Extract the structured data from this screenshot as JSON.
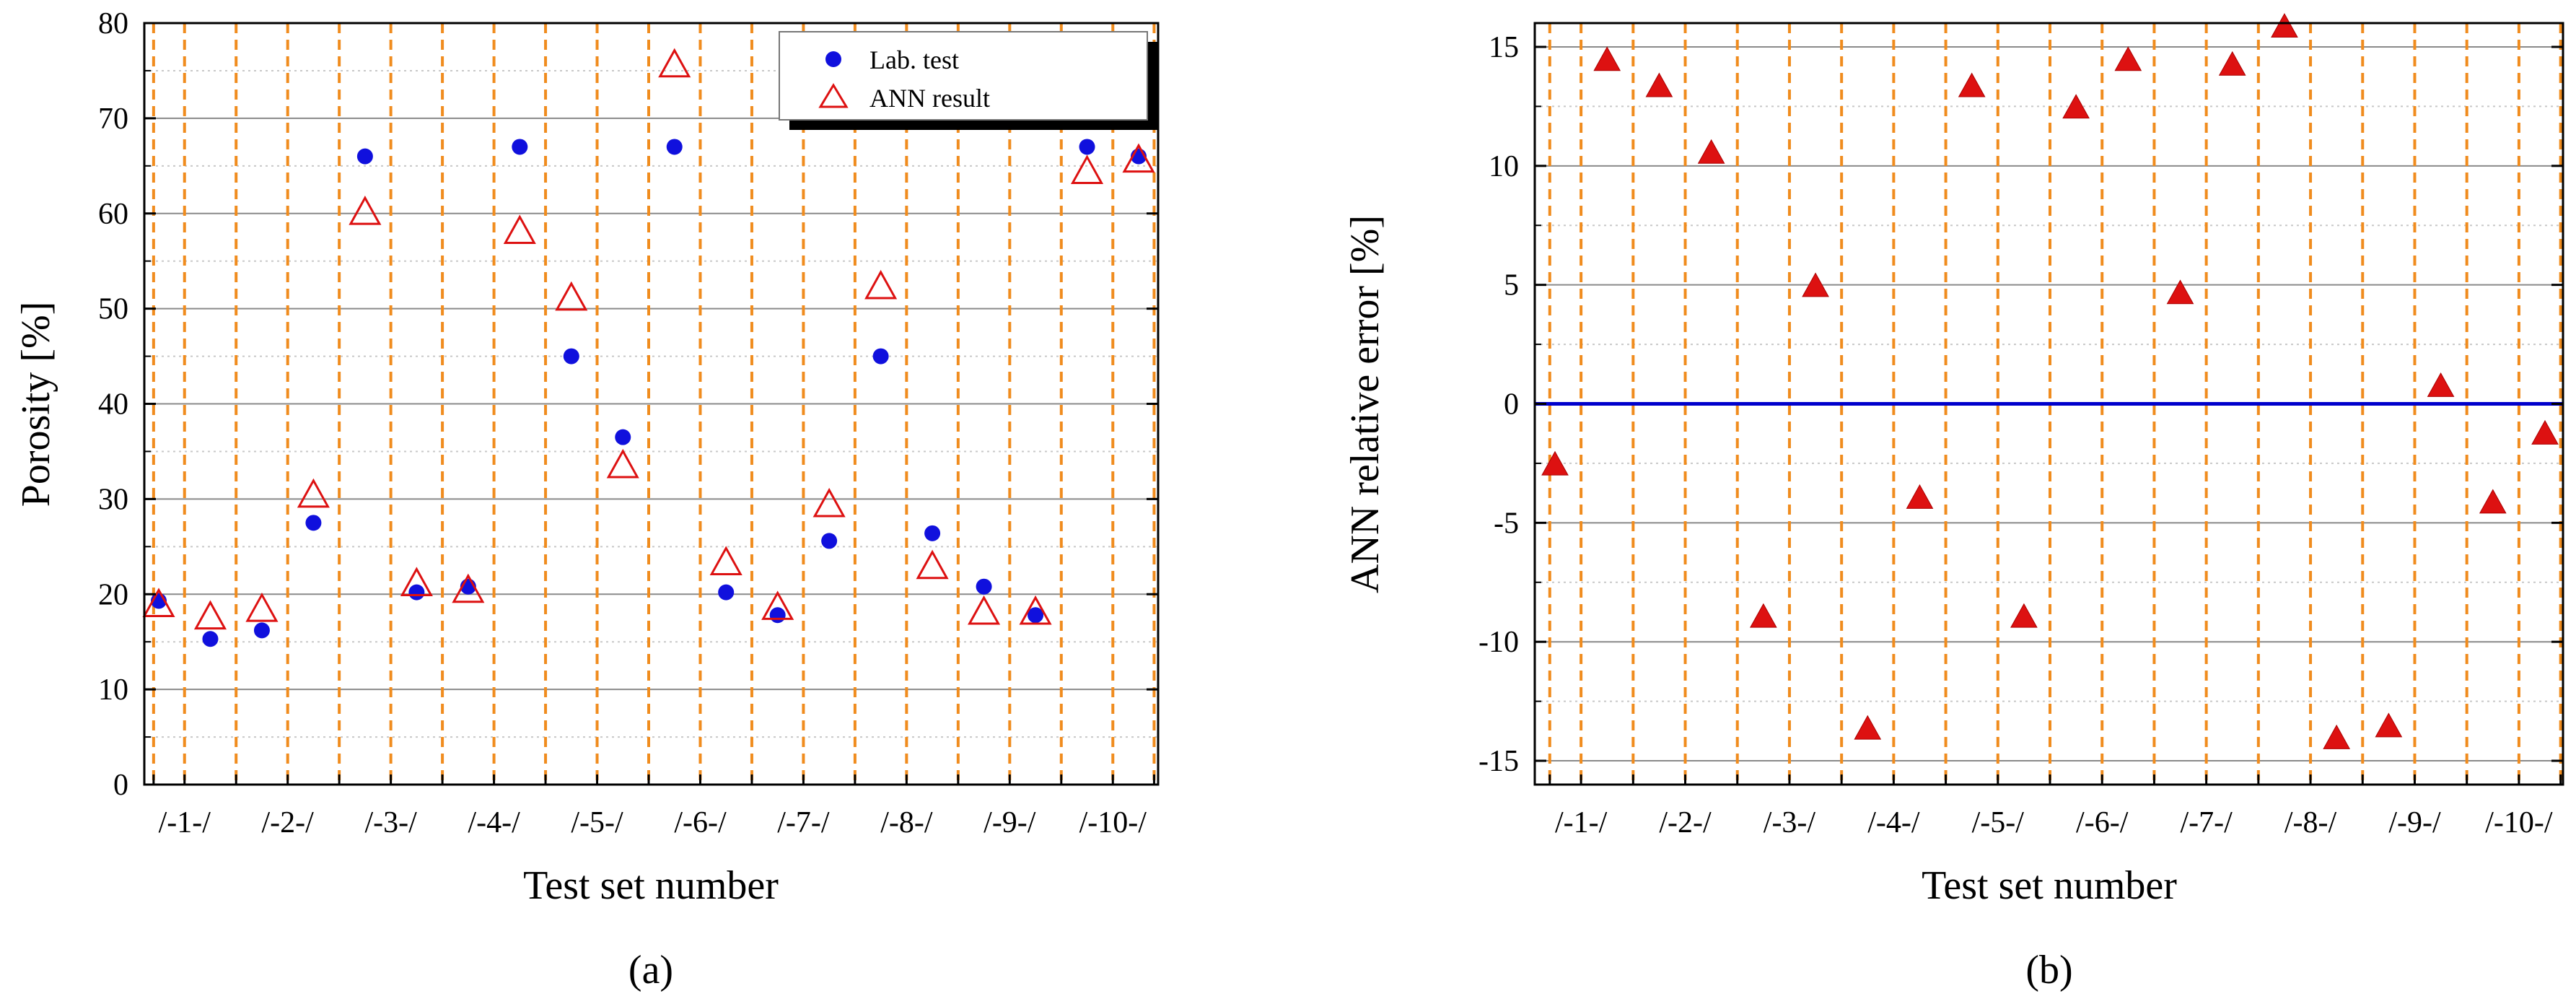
{
  "figure": {
    "panel_labels": [
      "(a)",
      "(b)"
    ]
  },
  "colors": {
    "lab": "#1010dd",
    "ann": "#dd1111",
    "guide": "#f08c1e",
    "zero": "#0000cc",
    "grid_major": "#8a8a8a",
    "grid_minor": "#c8c8c8"
  },
  "chart_data": [
    {
      "type": "scatter",
      "panel": "a",
      "xlabel": "Test set number",
      "ylabel": "Porosity [%]",
      "ylim": [
        0,
        80
      ],
      "yticks": [
        0,
        10,
        20,
        30,
        40,
        50,
        60,
        70,
        80
      ],
      "categories": [
        "/-1-/",
        "/-2-/",
        "/-3-/",
        "/-4-/",
        "/-5-/",
        "/-6-/",
        "/-7-/",
        "/-8-/",
        "/-9-/",
        "/-10-/"
      ],
      "x_positions": [
        1,
        2,
        3,
        4,
        5,
        6,
        7,
        8,
        9,
        10,
        11,
        12,
        13,
        14,
        15,
        16,
        17,
        18,
        19,
        20
      ],
      "series": [
        {
          "name": "Lab. test",
          "marker": "circle-filled",
          "values": [
            19.3,
            15.3,
            16.2,
            27.5,
            66,
            20.2,
            20.8,
            67,
            45,
            36.5,
            67,
            20.2,
            17.8,
            25.6,
            45,
            26.4,
            20.8,
            17.8,
            67,
            66
          ]
        },
        {
          "name": "ANN result",
          "marker": "triangle-open",
          "values": [
            18.8,
            17.5,
            18.3,
            30.3,
            60,
            21,
            20.3,
            58,
            51,
            33.4,
            75.5,
            23.2,
            18.5,
            29.3,
            52.2,
            22.8,
            18,
            18,
            64.3,
            65.5
          ]
        }
      ],
      "legend_position": "top-right",
      "grid": true
    },
    {
      "type": "scatter",
      "panel": "b",
      "xlabel": "Test set number",
      "ylabel": "ANN relative error [%]",
      "ylim": [
        -16,
        16
      ],
      "yticks": [
        -15,
        -10,
        -5,
        0,
        5,
        10,
        15
      ],
      "categories": [
        "/-1-/",
        "/-2-/",
        "/-3-/",
        "/-4-/",
        "/-5-/",
        "/-6-/",
        "/-7-/",
        "/-8-/",
        "/-9-/",
        "/-10-/"
      ],
      "x_positions": [
        1,
        2,
        3,
        4,
        5,
        6,
        7,
        8,
        9,
        10,
        11,
        12,
        13,
        14,
        15,
        16,
        17,
        18,
        19,
        20
      ],
      "series": [
        {
          "name": "ANN relative error",
          "marker": "triangle-filled",
          "values": [
            -2.6,
            14.4,
            13.3,
            10.5,
            -9.0,
            4.9,
            -13.7,
            -4.0,
            13.3,
            -9.0,
            12.4,
            14.4,
            4.6,
            14.2,
            15.8,
            -14.1,
            -13.6,
            0.7,
            -4.2,
            -1.3
          ]
        }
      ],
      "zero_line": true,
      "grid": true
    }
  ]
}
